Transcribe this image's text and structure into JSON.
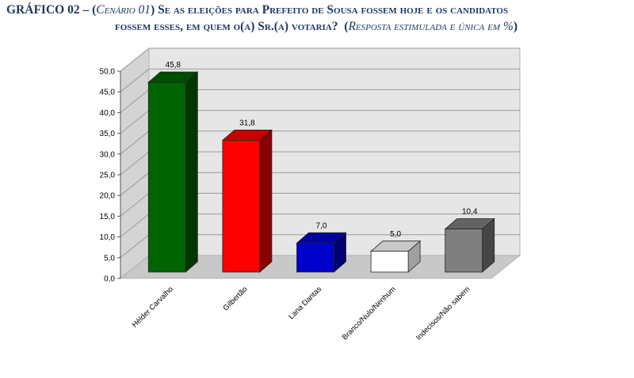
{
  "title": {
    "prefix": "GRÁFICO 02 – (",
    "scenario": "Cenário 01",
    "line1_rest": ") Se as eleições para Prefeito de Sousa fossem hoje e os candidatos",
    "line2_main": "fossem esses, em quem o(a) Sr.(a) votaria?",
    "line2_note_open": "  (",
    "line2_note": "Resposta estimulada e única em %",
    "line2_note_close": ")"
  },
  "chart_data": {
    "type": "bar",
    "title": "GRÁFICO 02 – (Cenário 01) Se as eleições para Prefeito de Sousa fossem hoje e os candidatos fossem esses, em quem o(a) Sr.(a) votaria? (Resposta estimulada e única em %)",
    "categories": [
      "Hélder Carvalho",
      "Gilbertão",
      "Lana Dantas",
      "Branco/Nulo/Nenhum",
      "Indecisos/Não sabem"
    ],
    "values": [
      45.8,
      31.8,
      7.0,
      5.0,
      10.4
    ],
    "value_labels": [
      "45,8",
      "31,8",
      "7,0",
      "5,0",
      "10,4"
    ],
    "colors": [
      "#006400",
      "#ff0000",
      "#0000cc",
      "#ffffff",
      "#7f7f7f"
    ],
    "ylim": [
      0,
      50
    ],
    "yticks": [
      "0,0",
      "5,0",
      "10,0",
      "15,0",
      "20,0",
      "25,0",
      "30,0",
      "35,0",
      "40,0",
      "45,0",
      "50,0"
    ],
    "xlabel": "",
    "ylabel": "",
    "grid": true,
    "three_d": true,
    "legend": "none"
  }
}
